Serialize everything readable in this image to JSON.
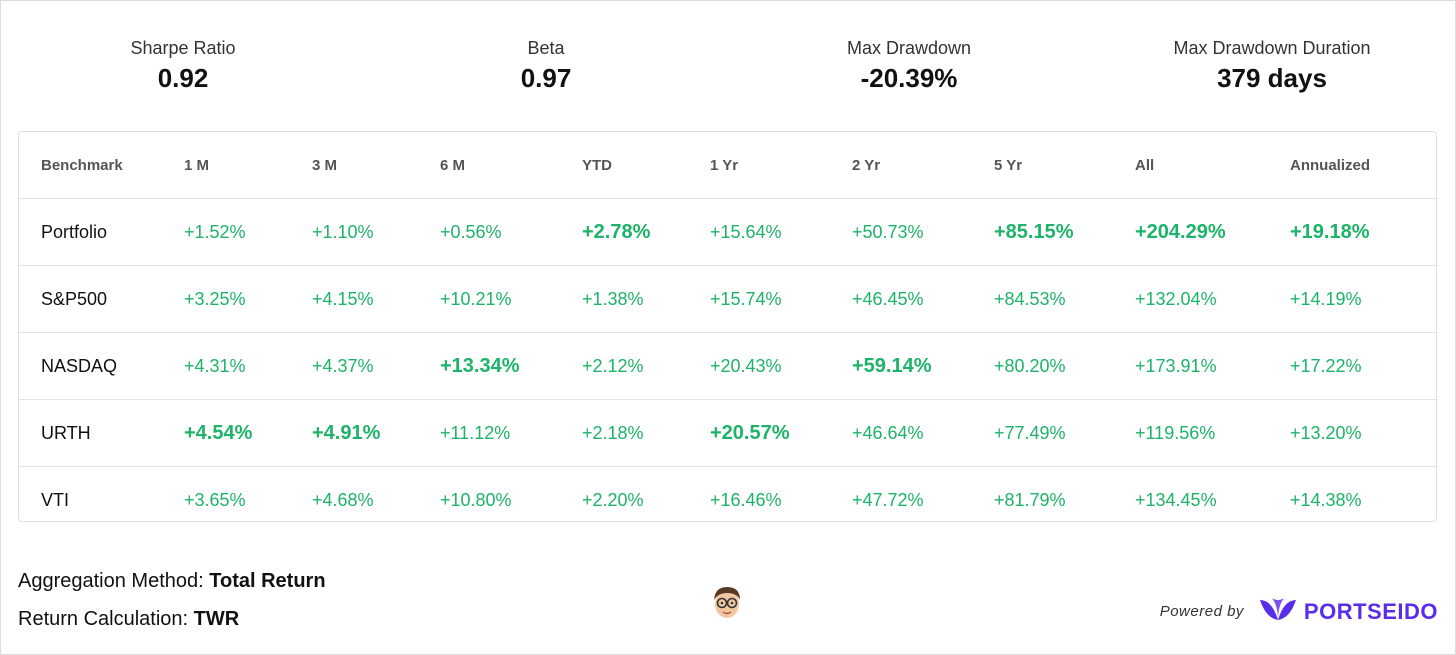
{
  "stats": [
    {
      "label": "Sharpe Ratio",
      "value": "0.92"
    },
    {
      "label": "Beta",
      "value": "0.97"
    },
    {
      "label": "Max Drawdown",
      "value": "-20.39%"
    },
    {
      "label": "Max Drawdown Duration",
      "value": "379 days"
    }
  ],
  "table": {
    "headers": [
      "Benchmark",
      "1 M",
      "3 M",
      "6 M",
      "YTD",
      "1 Yr",
      "2 Yr",
      "5 Yr",
      "All",
      "Annualized"
    ],
    "rows": [
      {
        "name": "Portfolio",
        "values": [
          "+1.52%",
          "+1.10%",
          "+0.56%",
          "+2.78%",
          "+15.64%",
          "+50.73%",
          "+85.15%",
          "+204.29%",
          "+19.18%"
        ]
      },
      {
        "name": "S&P500",
        "values": [
          "+3.25%",
          "+4.15%",
          "+10.21%",
          "+1.38%",
          "+15.74%",
          "+46.45%",
          "+84.53%",
          "+132.04%",
          "+14.19%"
        ]
      },
      {
        "name": "NASDAQ",
        "values": [
          "+4.31%",
          "+4.37%",
          "+13.34%",
          "+2.12%",
          "+20.43%",
          "+59.14%",
          "+80.20%",
          "+173.91%",
          "+17.22%"
        ]
      },
      {
        "name": "URTH",
        "values": [
          "+4.54%",
          "+4.91%",
          "+11.12%",
          "+2.18%",
          "+20.57%",
          "+46.64%",
          "+77.49%",
          "+119.56%",
          "+13.20%"
        ]
      },
      {
        "name": "VTI",
        "values": [
          "+3.65%",
          "+4.68%",
          "+10.80%",
          "+2.20%",
          "+16.46%",
          "+47.72%",
          "+81.79%",
          "+134.45%",
          "+14.38%"
        ]
      }
    ]
  },
  "footer": {
    "aggregation_label": "Aggregation Method: ",
    "aggregation_value": "Total Return",
    "return_label": "Return Calculation: ",
    "return_value": "TWR",
    "powered_by": "Powered by",
    "brand": "PORTSEIDO"
  },
  "colors": {
    "positive": "#1db368",
    "brand": "#5a2dea"
  },
  "icons": {
    "avatar": "avatar-icon",
    "brand_logo": "leaf-logo-icon"
  }
}
